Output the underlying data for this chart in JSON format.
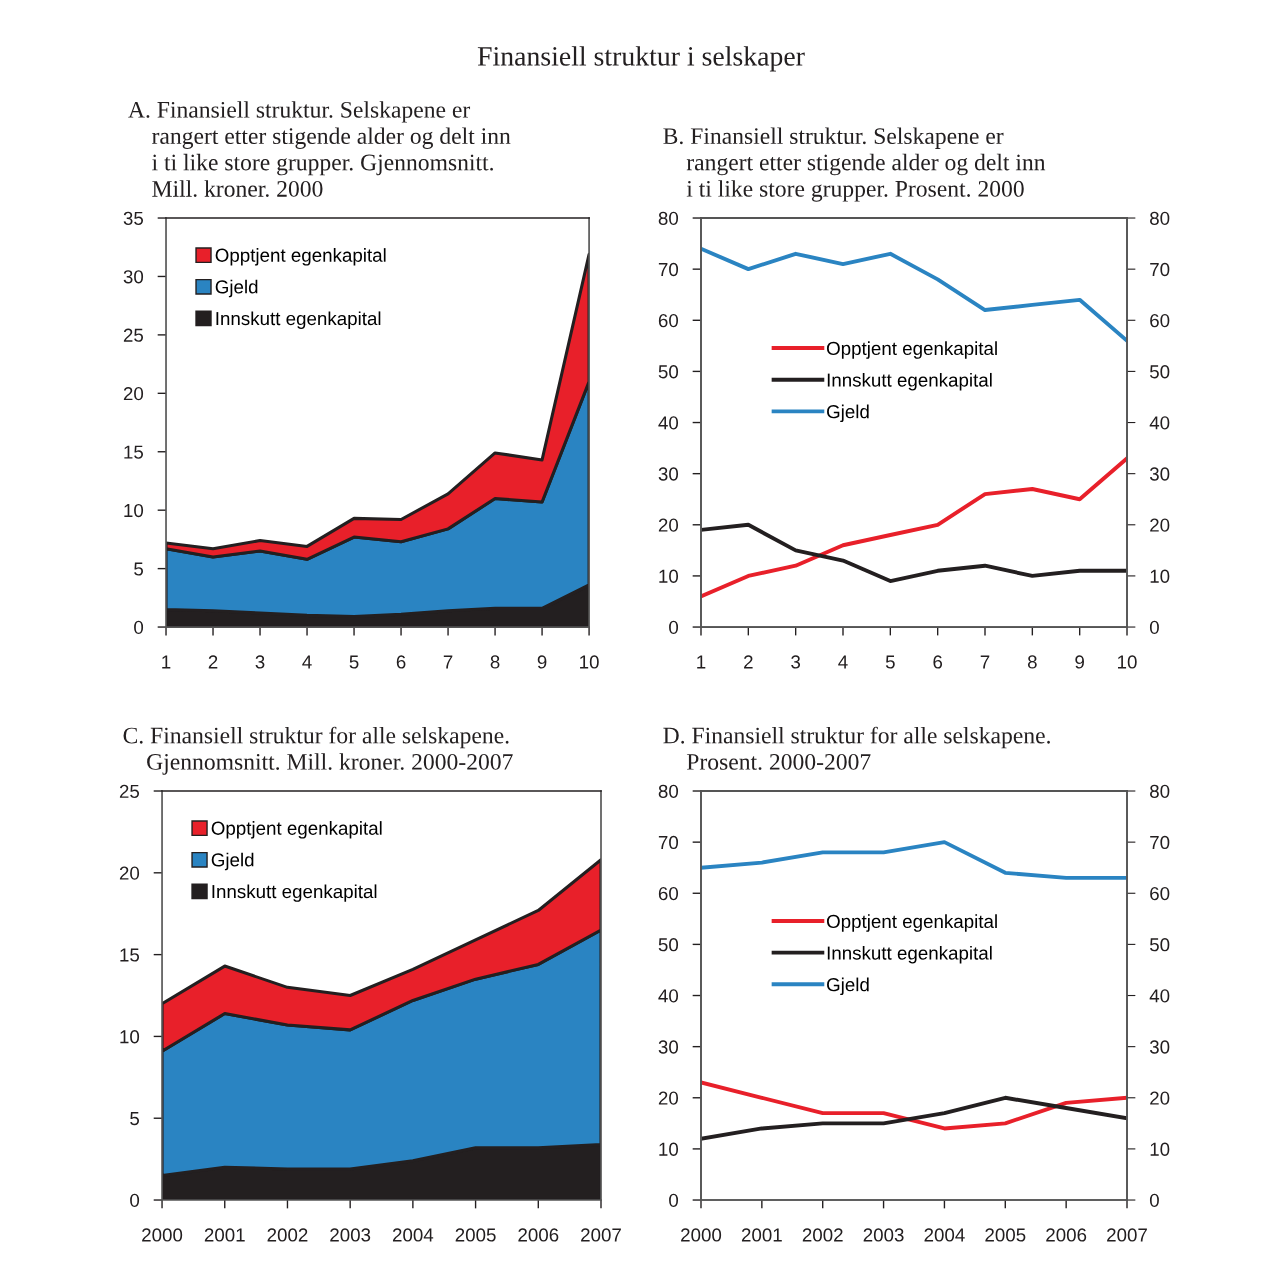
{
  "chart_data": [
    {
      "type": "area",
      "stacked": true,
      "annotations": [
        "Finansiell struktur i selskaper"
      ],
      "title": "A. Finansiell struktur. Selskapene er\n    rangert etter stigende alder og delt inn\n    i ti like store grupper. Gjennomsnitt.\n    Mill. kroner. 2000",
      "x": [
        1,
        2,
        3,
        4,
        5,
        6,
        7,
        8,
        9,
        10
      ],
      "xlim": [
        1,
        10
      ],
      "xticks": [
        1,
        2,
        3,
        4,
        5,
        6,
        7,
        8,
        9,
        10
      ],
      "ylim": [
        0,
        35
      ],
      "yticks": [
        0,
        5,
        10,
        15,
        20,
        25,
        30,
        35
      ],
      "legend": "top left",
      "grid": false,
      "series": [
        {
          "name": "Innskutt egenkapital",
          "color": "#231f20",
          "values": [
            1.5,
            1.4,
            1.2,
            1.0,
            0.9,
            1.1,
            1.4,
            1.6,
            1.6,
            3.6
          ]
        },
        {
          "name": "Gjeld",
          "color": "#2a84c2",
          "values": [
            5.2,
            4.6,
            5.3,
            4.8,
            6.8,
            6.2,
            7.0,
            9.4,
            9.1,
            17.4
          ]
        },
        {
          "name": "Opptjent egenkapital",
          "color": "#e8202a",
          "values": [
            0.5,
            0.7,
            0.9,
            1.1,
            1.6,
            1.9,
            3.0,
            3.9,
            3.6,
            10.9
          ]
        }
      ]
    },
    {
      "type": "line",
      "title": "B. Finansiell struktur. Selskapene er\n    rangert etter stigende alder og delt inn\n    i ti like store grupper. Prosent. 2000",
      "x": [
        1,
        2,
        3,
        4,
        5,
        6,
        7,
        8,
        9,
        10
      ],
      "xlim": [
        1,
        10
      ],
      "xticks": [
        1,
        2,
        3,
        4,
        5,
        6,
        7,
        8,
        9,
        10
      ],
      "ylim": [
        0,
        80
      ],
      "yticks": [
        0,
        10,
        20,
        30,
        40,
        50,
        60,
        70,
        80
      ],
      "y2lim": [
        0,
        80
      ],
      "y2ticks": [
        0,
        10,
        20,
        30,
        40,
        50,
        60,
        70,
        80
      ],
      "legend": "left",
      "grid": false,
      "series": [
        {
          "name": "Opptjent egenkapital",
          "color": "#e8202a",
          "values": [
            6,
            10,
            12,
            16,
            18,
            20,
            26,
            27,
            25,
            33
          ]
        },
        {
          "name": "Innskutt egenkapital",
          "color": "#231f20",
          "values": [
            19,
            20,
            15,
            13,
            9,
            11,
            12,
            10,
            11,
            11
          ]
        },
        {
          "name": "Gjeld",
          "color": "#2a84c2",
          "values": [
            74,
            70,
            73,
            71,
            73,
            68,
            62,
            63,
            64,
            56
          ]
        }
      ]
    },
    {
      "type": "area",
      "stacked": true,
      "title": "C. Finansiell struktur for alle selskapene.\n    Gjennomsnitt. Mill. kroner. 2000-2007",
      "x": [
        2000,
        2001,
        2002,
        2003,
        2004,
        2005,
        2006,
        2007
      ],
      "xlim": [
        2000,
        2007
      ],
      "xticks": [
        2000,
        2001,
        2002,
        2003,
        2004,
        2005,
        2006,
        2007
      ],
      "ylim": [
        0,
        25
      ],
      "yticks": [
        0,
        5,
        10,
        15,
        20,
        25
      ],
      "legend": "top left",
      "grid": false,
      "series": [
        {
          "name": "Innskutt egenkapital",
          "color": "#231f20",
          "values": [
            1.5,
            2.0,
            1.9,
            1.9,
            2.4,
            3.2,
            3.2,
            3.4
          ]
        },
        {
          "name": "Gjeld",
          "color": "#2a84c2",
          "values": [
            7.6,
            9.4,
            8.8,
            8.5,
            9.8,
            10.3,
            11.2,
            13.1
          ]
        },
        {
          "name": "Opptjent egenkapital",
          "color": "#e8202a",
          "values": [
            2.9,
            2.9,
            2.3,
            2.1,
            1.9,
            2.4,
            3.3,
            4.3
          ]
        }
      ]
    },
    {
      "type": "line",
      "title": "D. Finansiell struktur for alle selskapene.\n    Prosent. 2000-2007",
      "x": [
        2000,
        2001,
        2002,
        2003,
        2004,
        2005,
        2006,
        2007
      ],
      "xlim": [
        2000,
        2007
      ],
      "xticks": [
        2000,
        2001,
        2002,
        2003,
        2004,
        2005,
        2006,
        2007
      ],
      "ylim": [
        0,
        80
      ],
      "yticks": [
        0,
        10,
        20,
        30,
        40,
        50,
        60,
        70,
        80
      ],
      "y2lim": [
        0,
        80
      ],
      "y2ticks": [
        0,
        10,
        20,
        30,
        40,
        50,
        60,
        70,
        80
      ],
      "legend": "left",
      "grid": false,
      "series": [
        {
          "name": "Opptjent egenkapital",
          "color": "#e8202a",
          "values": [
            23,
            20,
            17,
            17,
            14,
            15,
            19,
            20
          ]
        },
        {
          "name": "Innskutt egenkapital",
          "color": "#231f20",
          "values": [
            12,
            14,
            15,
            15,
            17,
            20,
            18,
            16
          ]
        },
        {
          "name": "Gjeld",
          "color": "#2a84c2",
          "values": [
            65,
            66,
            68,
            68,
            70,
            64,
            63,
            63
          ]
        }
      ]
    }
  ]
}
